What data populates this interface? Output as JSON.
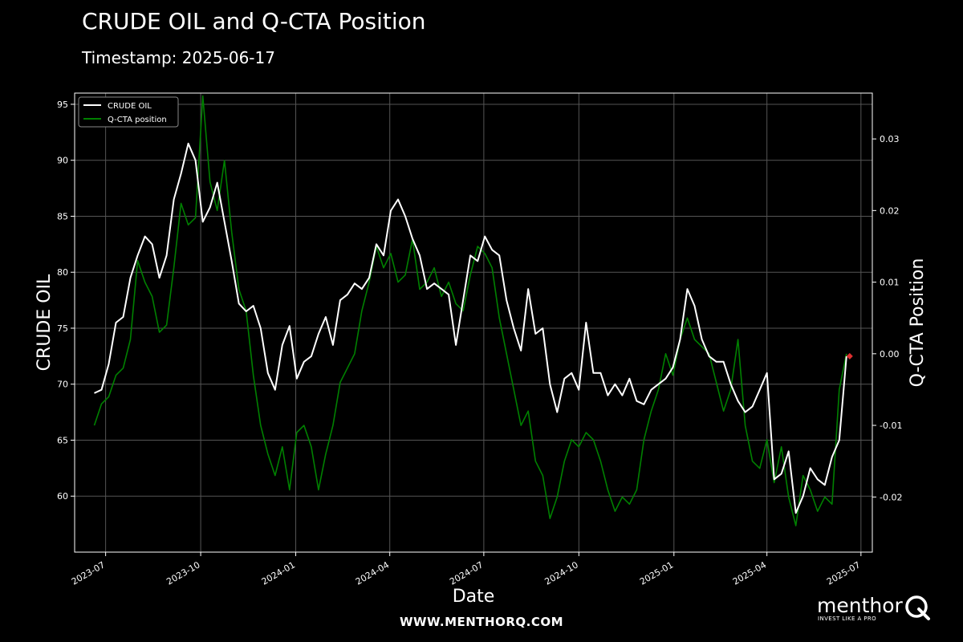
{
  "header": {
    "title": "CRUDE OIL and Q-CTA Position",
    "subtitle": "Timestamp: 2025-06-17"
  },
  "footer": {
    "url": "WWW.MENTHORQ.COM"
  },
  "logo": {
    "word": "menthor",
    "mark": "Q",
    "tagline": "INVEST LIKE A PRO"
  },
  "colors": {
    "background": "#000000",
    "price": "#ffffff",
    "position": "#008000",
    "marker": "#e03030",
    "grid": "#555555"
  },
  "chart_data": {
    "type": "line",
    "xlabel": "Date",
    "ylabel": "CRUDE OIL",
    "y2label": "Q-CTA Position",
    "ylim": [
      55,
      96
    ],
    "y2lim": [
      -0.0277,
      0.0364
    ],
    "xlim": [
      "2023-06-01",
      "2025-07-12"
    ],
    "yticks": [
      60,
      65,
      70,
      75,
      80,
      85,
      90,
      95
    ],
    "y2ticks": [
      "-0.02",
      "-0.01",
      "0.00",
      "0.01",
      "0.02",
      "0.03"
    ],
    "xticks": [
      "2023-07",
      "2023-10",
      "2024-01",
      "2024-04",
      "2024-07",
      "2024-10",
      "2025-01",
      "2025-04",
      "2025-07"
    ],
    "grid": true,
    "legend": {
      "placement": "top-left",
      "entries": [
        "CRUDE OIL",
        "Q-CTA position"
      ]
    },
    "series": [
      {
        "name": "CRUDE OIL",
        "axis": "left",
        "x": [
          "2023-06-20",
          "2023-06-27",
          "2023-07-04",
          "2023-07-11",
          "2023-07-18",
          "2023-07-25",
          "2023-08-01",
          "2023-08-08",
          "2023-08-15",
          "2023-08-22",
          "2023-08-29",
          "2023-09-05",
          "2023-09-12",
          "2023-09-19",
          "2023-09-26",
          "2023-10-03",
          "2023-10-10",
          "2023-10-17",
          "2023-10-24",
          "2023-10-31",
          "2023-11-07",
          "2023-11-14",
          "2023-11-21",
          "2023-11-28",
          "2023-12-05",
          "2023-12-12",
          "2023-12-19",
          "2023-12-26",
          "2024-01-02",
          "2024-01-09",
          "2024-01-16",
          "2024-01-23",
          "2024-01-30",
          "2024-02-06",
          "2024-02-13",
          "2024-02-20",
          "2024-02-27",
          "2024-03-05",
          "2024-03-12",
          "2024-03-19",
          "2024-03-26",
          "2024-04-02",
          "2024-04-09",
          "2024-04-16",
          "2024-04-23",
          "2024-04-30",
          "2024-05-07",
          "2024-05-14",
          "2024-05-21",
          "2024-05-28",
          "2024-06-04",
          "2024-06-11",
          "2024-06-18",
          "2024-06-25",
          "2024-07-02",
          "2024-07-09",
          "2024-07-16",
          "2024-07-23",
          "2024-07-30",
          "2024-08-06",
          "2024-08-13",
          "2024-08-20",
          "2024-08-27",
          "2024-09-03",
          "2024-09-10",
          "2024-09-17",
          "2024-09-24",
          "2024-10-01",
          "2024-10-08",
          "2024-10-15",
          "2024-10-22",
          "2024-10-29",
          "2024-11-05",
          "2024-11-12",
          "2024-11-19",
          "2024-11-26",
          "2024-12-03",
          "2024-12-10",
          "2024-12-17",
          "2024-12-24",
          "2024-12-31",
          "2025-01-07",
          "2025-01-14",
          "2025-01-21",
          "2025-01-28",
          "2025-02-04",
          "2025-02-11",
          "2025-02-18",
          "2025-02-25",
          "2025-03-04",
          "2025-03-11",
          "2025-03-18",
          "2025-03-25",
          "2025-04-01",
          "2025-04-08",
          "2025-04-15",
          "2025-04-22",
          "2025-04-29",
          "2025-05-06",
          "2025-05-13",
          "2025-05-20",
          "2025-05-27",
          "2025-06-03",
          "2025-06-10",
          "2025-06-17"
        ],
        "values": [
          69.2,
          69.5,
          71.8,
          75.5,
          76.0,
          79.5,
          81.5,
          83.2,
          82.5,
          79.5,
          81.5,
          86.5,
          88.8,
          91.5,
          90.0,
          84.5,
          85.8,
          88.0,
          84.5,
          81.0,
          77.2,
          76.5,
          77.0,
          75.0,
          71.0,
          69.5,
          73.5,
          75.2,
          70.5,
          72.0,
          72.5,
          74.5,
          76.0,
          73.5,
          77.5,
          78.0,
          79.0,
          78.5,
          79.5,
          82.5,
          81.5,
          85.5,
          86.5,
          85.0,
          83.0,
          81.5,
          78.5,
          79.0,
          78.5,
          78.0,
          73.5,
          77.5,
          81.5,
          81.0,
          83.2,
          82.0,
          81.5,
          77.5,
          75.0,
          73.0,
          78.5,
          74.5,
          75.0,
          70.0,
          67.5,
          70.5,
          71.0,
          69.5,
          75.5,
          71.0,
          71.0,
          69.0,
          70.0,
          69.0,
          70.5,
          68.5,
          68.2,
          69.5,
          70.0,
          70.5,
          71.5,
          74.0,
          78.5,
          77.0,
          74.0,
          72.5,
          72.0,
          72.0,
          70.0,
          68.5,
          67.5,
          68.0,
          69.5,
          71.0,
          61.5,
          62.0,
          64.0,
          58.5,
          60.0,
          62.5,
          61.5,
          61.0,
          63.5,
          65.0,
          72.5
        ]
      },
      {
        "name": "Q-CTA position",
        "axis": "right",
        "x": [
          "2023-06-20",
          "2023-06-27",
          "2023-07-04",
          "2023-07-11",
          "2023-07-18",
          "2023-07-25",
          "2023-08-01",
          "2023-08-08",
          "2023-08-15",
          "2023-08-22",
          "2023-08-29",
          "2023-09-05",
          "2023-09-12",
          "2023-09-19",
          "2023-09-26",
          "2023-10-03",
          "2023-10-10",
          "2023-10-17",
          "2023-10-24",
          "2023-10-31",
          "2023-11-07",
          "2023-11-14",
          "2023-11-21",
          "2023-11-28",
          "2023-12-05",
          "2023-12-12",
          "2023-12-19",
          "2023-12-26",
          "2024-01-02",
          "2024-01-09",
          "2024-01-16",
          "2024-01-23",
          "2024-01-30",
          "2024-02-06",
          "2024-02-13",
          "2024-02-20",
          "2024-02-27",
          "2024-03-05",
          "2024-03-12",
          "2024-03-19",
          "2024-03-26",
          "2024-04-02",
          "2024-04-09",
          "2024-04-16",
          "2024-04-23",
          "2024-04-30",
          "2024-05-07",
          "2024-05-14",
          "2024-05-21",
          "2024-05-28",
          "2024-06-04",
          "2024-06-11",
          "2024-06-18",
          "2024-06-25",
          "2024-07-02",
          "2024-07-09",
          "2024-07-16",
          "2024-07-23",
          "2024-07-30",
          "2024-08-06",
          "2024-08-13",
          "2024-08-20",
          "2024-08-27",
          "2024-09-03",
          "2024-09-10",
          "2024-09-17",
          "2024-09-24",
          "2024-10-01",
          "2024-10-08",
          "2024-10-15",
          "2024-10-22",
          "2024-10-29",
          "2024-11-05",
          "2024-11-12",
          "2024-11-19",
          "2024-11-26",
          "2024-12-03",
          "2024-12-10",
          "2024-12-17",
          "2024-12-24",
          "2024-12-31",
          "2025-01-07",
          "2025-01-14",
          "2025-01-21",
          "2025-01-28",
          "2025-02-04",
          "2025-02-11",
          "2025-02-18",
          "2025-02-25",
          "2025-03-04",
          "2025-03-11",
          "2025-03-18",
          "2025-03-25",
          "2025-04-01",
          "2025-04-08",
          "2025-04-15",
          "2025-04-22",
          "2025-04-29",
          "2025-05-06",
          "2025-05-13",
          "2025-05-20",
          "2025-05-27",
          "2025-06-03",
          "2025-06-10",
          "2025-06-17"
        ],
        "values": [
          -0.01,
          -0.007,
          -0.006,
          -0.003,
          -0.002,
          0.002,
          0.013,
          0.01,
          0.008,
          0.003,
          0.004,
          0.012,
          0.021,
          0.018,
          0.019,
          0.036,
          0.024,
          0.02,
          0.027,
          0.017,
          0.009,
          0.006,
          -0.003,
          -0.01,
          -0.014,
          -0.017,
          -0.013,
          -0.019,
          -0.011,
          -0.01,
          -0.013,
          -0.019,
          -0.014,
          -0.01,
          -0.004,
          -0.002,
          0.0,
          0.006,
          0.01,
          0.015,
          0.012,
          0.014,
          0.01,
          0.011,
          0.016,
          0.009,
          0.01,
          0.012,
          0.008,
          0.01,
          0.007,
          0.006,
          0.011,
          0.015,
          0.014,
          0.012,
          0.005,
          0.0,
          -0.005,
          -0.01,
          -0.008,
          -0.015,
          -0.017,
          -0.023,
          -0.02,
          -0.015,
          -0.012,
          -0.013,
          -0.011,
          -0.012,
          -0.015,
          -0.019,
          -0.022,
          -0.02,
          -0.021,
          -0.019,
          -0.012,
          -0.008,
          -0.005,
          0.0,
          -0.003,
          0.002,
          0.005,
          0.002,
          0.001,
          0.0,
          -0.004,
          -0.008,
          -0.005,
          0.002,
          -0.01,
          -0.015,
          -0.016,
          -0.012,
          -0.018,
          -0.013,
          -0.02,
          -0.024,
          -0.017,
          -0.019,
          -0.022,
          -0.02,
          -0.021,
          -0.005,
          0.0
        ]
      }
    ],
    "last_point": {
      "date": "2025-06-17",
      "value": 72.5
    }
  }
}
